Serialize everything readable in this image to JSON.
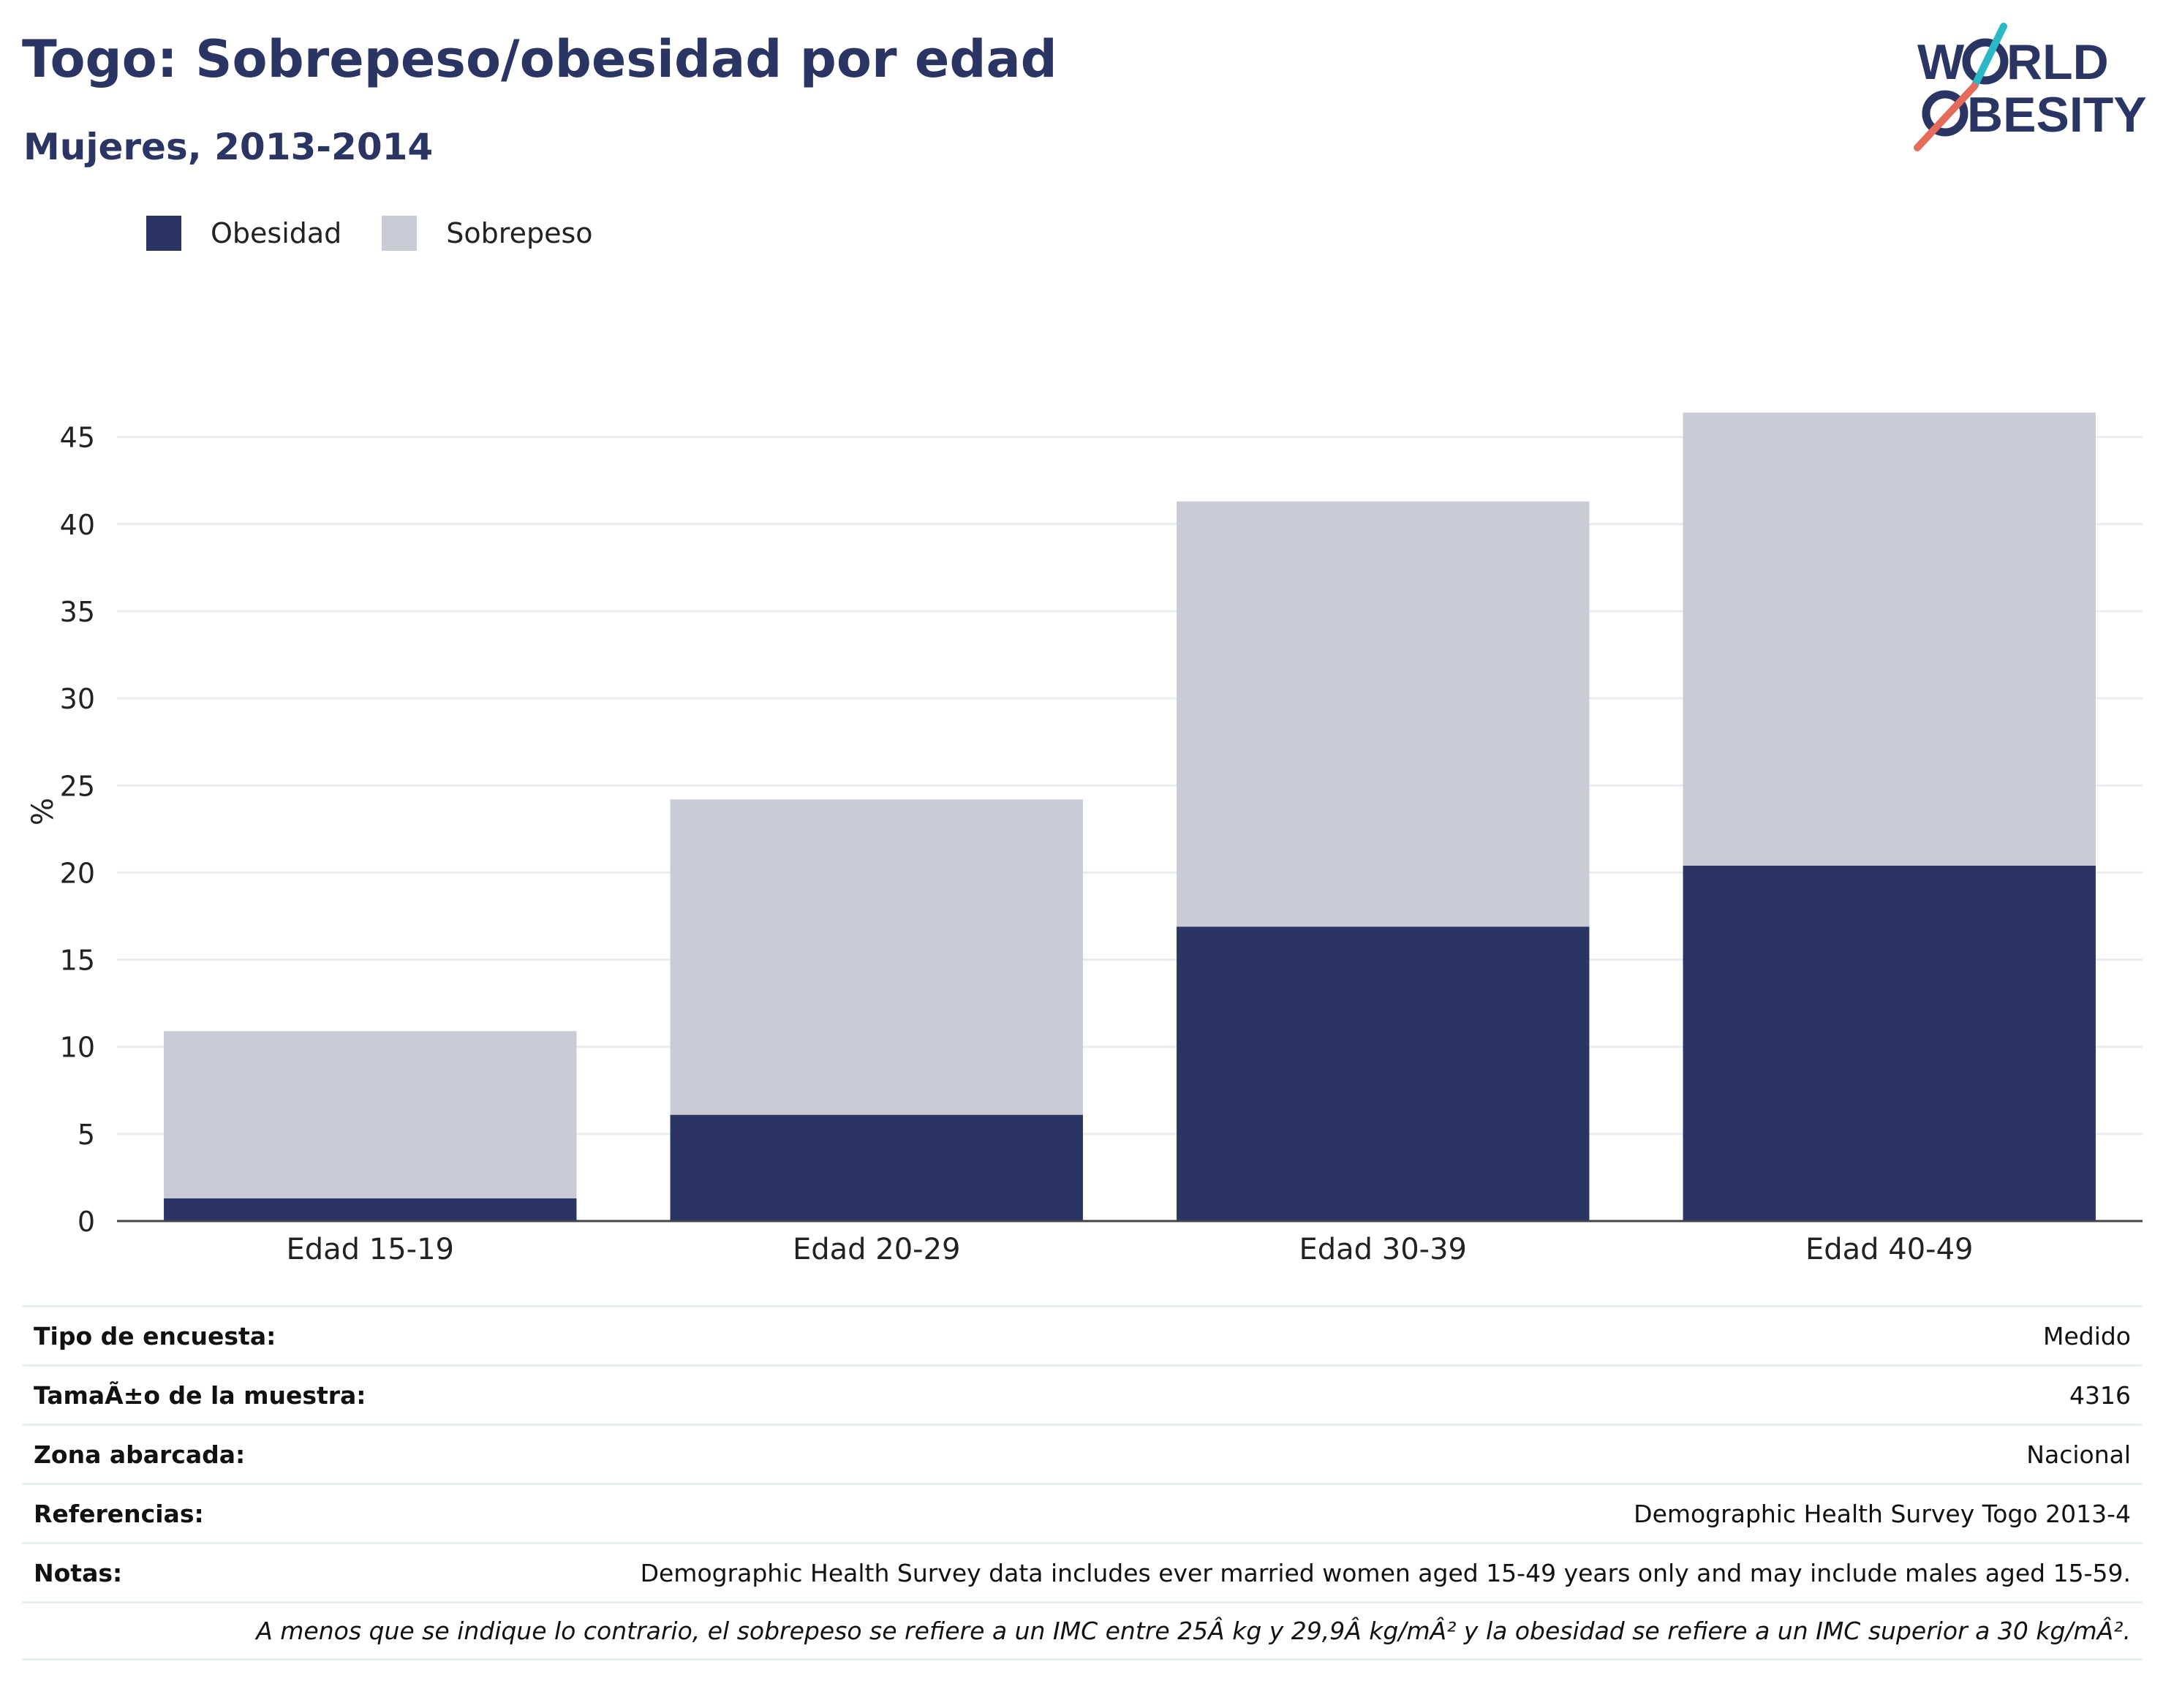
{
  "header": {
    "title": "Togo: Sobrepeso/obesidad por edad",
    "subtitle": "Mujeres, 2013-2014"
  },
  "logo": {
    "line1_left": "W",
    "line1_right": "RLD",
    "line2_right": "BESITY",
    "color": "#2a3564",
    "accent_teal": "#2ab8c4",
    "accent_red": "#e56b5b"
  },
  "legend": [
    {
      "label": "Obesidad",
      "color": "#2a3564"
    },
    {
      "label": "Sobrepeso",
      "color": "#c9ccd7"
    }
  ],
  "chart_data": {
    "type": "bar",
    "stacked": true,
    "categories": [
      "Edad 15-19",
      "Edad 20-29",
      "Edad 30-39",
      "Edad 40-49"
    ],
    "series": [
      {
        "name": "Obesidad",
        "values": [
          1.3,
          6.1,
          16.9,
          20.4
        ],
        "color": "#2a3564"
      },
      {
        "name": "Sobrepeso",
        "values": [
          9.6,
          18.1,
          24.4,
          26.0
        ],
        "color": "#c9ccd7"
      }
    ],
    "ylabel": "%",
    "ylim": [
      0,
      47
    ],
    "yticks": [
      0,
      5,
      10,
      15,
      20,
      25,
      30,
      35,
      40,
      45
    ],
    "grid": true,
    "legend_position": "top-left"
  },
  "info": {
    "rows": [
      {
        "key": "Tipo de encuesta:",
        "value": "Medido"
      },
      {
        "key": "TamaÃ±o de la muestra:",
        "value": "4316"
      },
      {
        "key": "Zona abarcada:",
        "value": "Nacional"
      },
      {
        "key": "Referencias:",
        "value": "Demographic Health Survey Togo 2013-4"
      },
      {
        "key": "Notas:",
        "value": "Demographic Health Survey data includes ever married women aged 15-49 years only and may include males aged 15-59."
      }
    ],
    "footnote": "A menos que se indique lo contrario, el sobrepeso se refiere a un IMC entre 25Â kg y 29,9Â kg/mÂ² y la obesidad se refiere a un IMC superior a 30 kg/mÂ²."
  }
}
